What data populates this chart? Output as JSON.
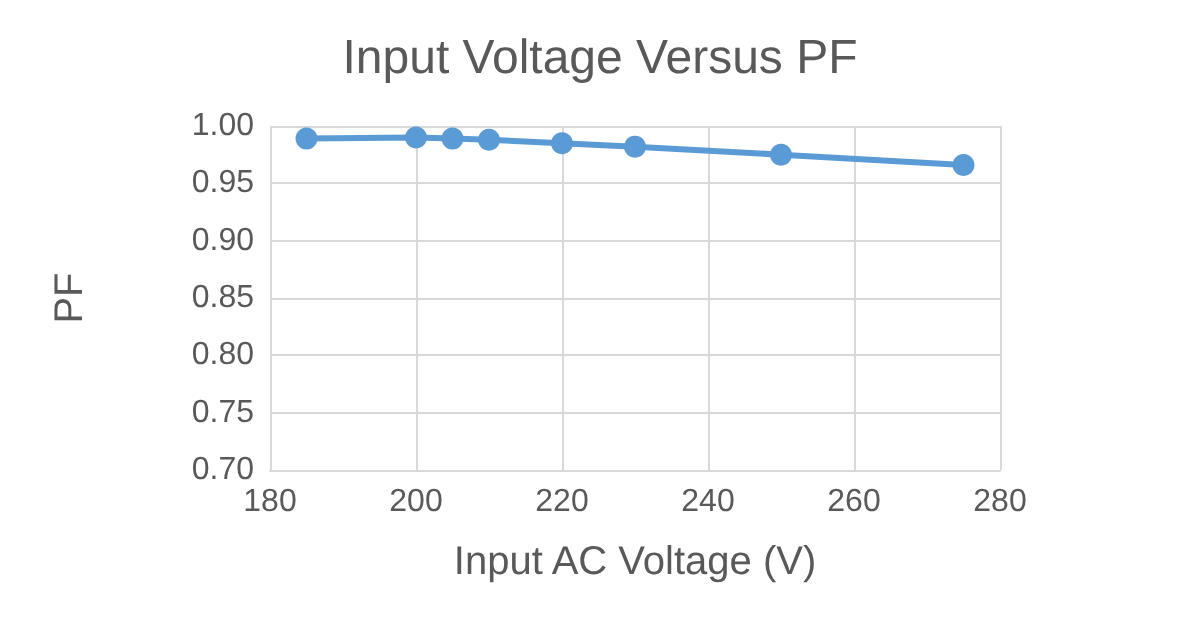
{
  "chart_data": {
    "type": "line",
    "title": "Input Voltage Versus PF",
    "xlabel": "Input AC Voltage (V)",
    "ylabel": "PF",
    "x": [
      185,
      200,
      205,
      210,
      220,
      230,
      250,
      275
    ],
    "series": [
      {
        "color": "#5b9bd5",
        "values": [
          0.989,
          0.99,
          0.989,
          0.988,
          0.985,
          0.982,
          0.975,
          0.966
        ]
      }
    ],
    "xlim": [
      180,
      280
    ],
    "xticks": [
      180,
      200,
      220,
      240,
      260,
      280
    ],
    "ylim": [
      0.7,
      1.0
    ],
    "yticks": [
      {
        "value": 0.7,
        "label": "0.70"
      },
      {
        "value": 0.75,
        "label": "0.75"
      },
      {
        "value": 0.8,
        "label": "0.80"
      },
      {
        "value": 0.85,
        "label": "0.85"
      },
      {
        "value": 0.9,
        "label": "0.90"
      },
      {
        "value": 0.95,
        "label": "0.95"
      },
      {
        "value": 1.0,
        "label": "1.00"
      }
    ],
    "grid": true,
    "marker": "circle",
    "line_style": "solid"
  }
}
